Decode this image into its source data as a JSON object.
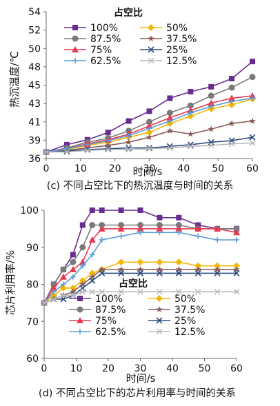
{
  "chart_data": [
    {
      "type": "line",
      "caption": "(c) 不同占空比下的热沉温度与时间的关系",
      "xlabel": "时间/s",
      "ylabel": "热沉温度/℃",
      "xlim": [
        0,
        60
      ],
      "ylim": [
        36,
        54
      ],
      "xticks": [
        "0",
        "10",
        "20",
        "30",
        "40",
        "50",
        "60"
      ],
      "yticks": [
        "36",
        "39",
        "41",
        "43",
        "45",
        "48",
        "50",
        "52",
        "54"
      ],
      "legend_title": "占空比",
      "grid": false,
      "series": [
        {
          "name": "100%",
          "color": "#6a2c91",
          "marker": "square",
          "x": [
            0,
            6,
            12,
            18,
            24,
            30,
            36,
            42,
            48,
            54,
            60
          ],
          "y": [
            36.8,
            37.7,
            38.3,
            39.2,
            40.6,
            41.8,
            43.4,
            44.2,
            44.8,
            45.8,
            47.9
          ]
        },
        {
          "name": "50%",
          "color": "#f2b705",
          "marker": "diamond",
          "x": [
            0,
            6,
            12,
            18,
            24,
            30,
            36,
            42,
            48,
            54,
            60
          ],
          "y": [
            36.8,
            37.1,
            37.6,
            38.0,
            38.6,
            39.2,
            40.3,
            41.2,
            42.1,
            42.6,
            43.3
          ]
        },
        {
          "name": "87.5%",
          "color": "#7a7a7a",
          "marker": "circle",
          "x": [
            0,
            6,
            12,
            18,
            24,
            30,
            36,
            42,
            48,
            54,
            60
          ],
          "y": [
            36.8,
            37.3,
            38.0,
            38.5,
            39.4,
            40.5,
            41.6,
            42.5,
            43.7,
            44.7,
            46.0
          ]
        },
        {
          "name": "37.5%",
          "color": "#8b5a5a",
          "marker": "star",
          "x": [
            0,
            6,
            12,
            18,
            24,
            30,
            36,
            42,
            48,
            54,
            60
          ],
          "y": [
            36.8,
            37.0,
            37.3,
            37.6,
            38.0,
            38.6,
            39.4,
            39.0,
            39.6,
            40.3,
            40.6
          ]
        },
        {
          "name": "75%",
          "color": "#e8384f",
          "marker": "triangle",
          "x": [
            0,
            6,
            12,
            18,
            24,
            30,
            36,
            42,
            48,
            54,
            60
          ],
          "y": [
            36.8,
            37.2,
            37.8,
            38.3,
            39.0,
            40.0,
            41.0,
            41.9,
            42.8,
            43.4,
            43.7
          ]
        },
        {
          "name": "25%",
          "color": "#2b4c7e",
          "marker": "x",
          "x": [
            0,
            6,
            12,
            18,
            24,
            30,
            36,
            42,
            48,
            54,
            60
          ],
          "y": [
            36.8,
            36.9,
            37.1,
            37.2,
            37.3,
            37.3,
            37.5,
            37.7,
            38.0,
            38.2,
            38.6
          ]
        },
        {
          "name": "62.5%",
          "color": "#5b9bd5",
          "marker": "plus",
          "x": [
            0,
            6,
            12,
            18,
            24,
            30,
            36,
            42,
            48,
            54,
            60
          ],
          "y": [
            36.8,
            37.2,
            37.7,
            38.2,
            38.8,
            39.7,
            40.6,
            41.6,
            42.4,
            43.0,
            43.4
          ]
        },
        {
          "name": "12.5%",
          "color": "#b8b8b8",
          "marker": "asterisk",
          "x": [
            0,
            6,
            12,
            18,
            24,
            30,
            36,
            42,
            48,
            54,
            60
          ],
          "y": [
            36.8,
            36.8,
            37.0,
            37.1,
            37.1,
            37.2,
            37.3,
            37.5,
            37.6,
            37.8,
            37.9
          ]
        }
      ]
    },
    {
      "type": "line",
      "caption": "(d) 不同占空比下的芯片利用率与时间的关系",
      "xlabel": "时间/s",
      "ylabel": "芯片利用率/%",
      "xlim": [
        0,
        60
      ],
      "ylim": [
        60,
        100
      ],
      "xticks": [
        "0",
        "10",
        "20",
        "30",
        "40",
        "50",
        "60"
      ],
      "yticks": [
        "60",
        "70",
        "80",
        "90",
        "100"
      ],
      "legend_title": "占空比",
      "grid": false,
      "series": [
        {
          "name": "100%",
          "color": "#6a2c91",
          "marker": "square",
          "x": [
            0,
            3,
            6,
            9,
            12,
            15,
            18,
            24,
            30,
            36,
            42,
            48,
            54,
            60
          ],
          "y": [
            75,
            80,
            84,
            88,
            96,
            100,
            100,
            100,
            100,
            98,
            98,
            96,
            95,
            95
          ]
        },
        {
          "name": "50%",
          "color": "#f2b705",
          "marker": "diamond",
          "x": [
            0,
            3,
            6,
            9,
            12,
            15,
            18,
            24,
            30,
            36,
            42,
            48,
            54,
            60
          ],
          "y": [
            75,
            77,
            79,
            79,
            81,
            83,
            84,
            86,
            86,
            86,
            86,
            85,
            85,
            85
          ]
        },
        {
          "name": "87.5%",
          "color": "#7a7a7a",
          "marker": "circle",
          "x": [
            0,
            3,
            6,
            9,
            12,
            15,
            18,
            24,
            30,
            36,
            42,
            48,
            54,
            60
          ],
          "y": [
            75,
            80,
            84,
            86,
            90,
            96,
            96,
            96,
            96,
            96,
            96,
            95,
            95,
            95
          ]
        },
        {
          "name": "37.5%",
          "color": "#8b5a5a",
          "marker": "star",
          "x": [
            0,
            3,
            6,
            9,
            12,
            15,
            18,
            24,
            30,
            36,
            42,
            48,
            54,
            60
          ],
          "y": [
            75,
            76,
            77,
            78,
            80,
            82,
            84,
            84,
            84,
            84,
            84,
            84,
            84,
            84
          ]
        },
        {
          "name": "75%",
          "color": "#e8384f",
          "marker": "triangle",
          "x": [
            0,
            3,
            6,
            9,
            12,
            15,
            18,
            24,
            30,
            36,
            42,
            48,
            54,
            60
          ],
          "y": [
            75,
            79,
            82,
            84,
            86,
            92,
            95,
            95,
            95,
            95,
            95,
            95,
            95,
            94
          ]
        },
        {
          "name": "25%",
          "color": "#2b4c7e",
          "marker": "x",
          "x": [
            0,
            3,
            6,
            9,
            12,
            15,
            18,
            24,
            30,
            36,
            42,
            48,
            54,
            60
          ],
          "y": [
            75,
            76,
            76,
            77,
            79,
            81,
            83,
            83,
            83,
            83,
            83,
            83,
            83,
            83
          ]
        },
        {
          "name": "62.5%",
          "color": "#5b9bd5",
          "marker": "plus",
          "x": [
            0,
            3,
            6,
            9,
            12,
            15,
            18,
            24,
            30,
            36,
            42,
            48,
            54,
            60
          ],
          "y": [
            75,
            78,
            80,
            82,
            85,
            88,
            92,
            93,
            94,
            94,
            94,
            93,
            92,
            92
          ]
        },
        {
          "name": "12.5%",
          "color": "#b8b8b8",
          "marker": "asterisk",
          "x": [
            0,
            3,
            6,
            9,
            12,
            15,
            18,
            24,
            30,
            36,
            42,
            48,
            54,
            60
          ],
          "y": [
            75,
            76,
            77,
            77,
            78,
            78,
            78,
            78,
            78,
            78,
            78,
            78,
            78,
            78
          ]
        }
      ]
    }
  ]
}
